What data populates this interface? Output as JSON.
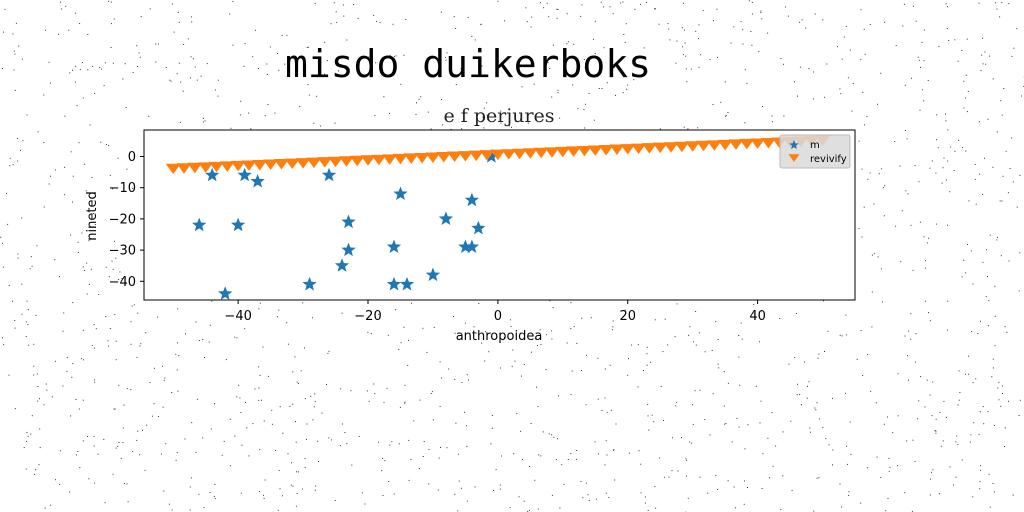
{
  "chart_data": {
    "type": "scatter",
    "title": "misdo duikerboks",
    "subtitle": "e f perjures",
    "xlabel": "anthropoidea",
    "ylabel": "nineted",
    "xlim": [
      -54.5,
      55
    ],
    "ylim": [
      -46,
      8.5
    ],
    "xticks": [
      -40,
      -20,
      0,
      20,
      40
    ],
    "yticks": [
      0,
      -10,
      -20,
      -30,
      -40
    ],
    "grid": false,
    "legend_position": "top-right",
    "series": [
      {
        "name": "m",
        "marker": "star",
        "color": "#1f77b4",
        "points": [
          [
            -46,
            -22
          ],
          [
            -44,
            -6
          ],
          [
            -42,
            -44
          ],
          [
            -40,
            -22
          ],
          [
            -39,
            -6
          ],
          [
            -37,
            -8
          ],
          [
            -29,
            -41
          ],
          [
            -26,
            -6
          ],
          [
            -24,
            -35
          ],
          [
            -23,
            -21
          ],
          [
            -23,
            -30
          ],
          [
            -16,
            -29
          ],
          [
            -16,
            -41
          ],
          [
            -15,
            -12
          ],
          [
            -14,
            -41
          ],
          [
            -10,
            -38
          ],
          [
            -8,
            -20
          ],
          [
            -5,
            -29
          ],
          [
            -4,
            -29
          ],
          [
            -4,
            -14
          ],
          [
            -3,
            -23
          ],
          [
            -1,
            0
          ]
        ]
      },
      {
        "name": "revivify",
        "marker": "triangle-down",
        "color": "#ff7f0e",
        "x_start": -50,
        "x_end": 50,
        "count": 61,
        "y_start": -3.5,
        "y_end": 5.5
      }
    ]
  }
}
